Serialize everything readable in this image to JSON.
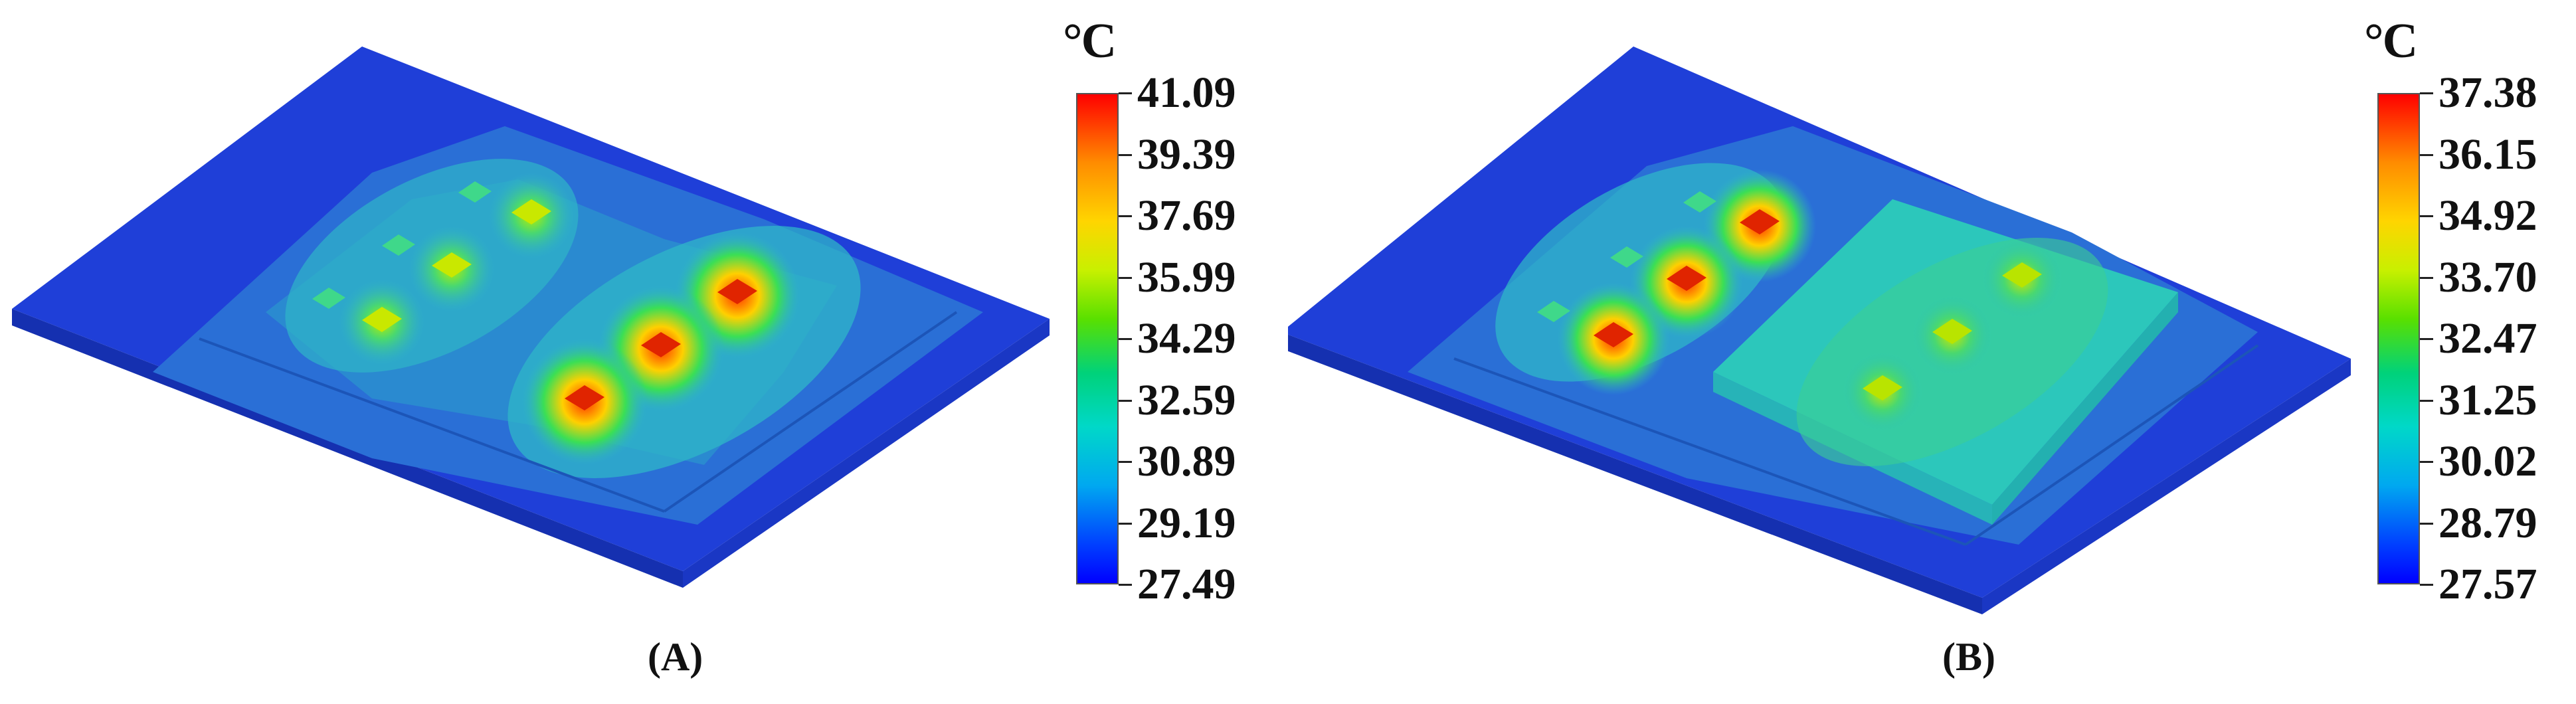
{
  "panel_a": {
    "caption": "(A)",
    "unit": "°C",
    "scale": [
      "41.09",
      "39.39",
      "37.69",
      "35.99",
      "34.29",
      "32.59",
      "30.89",
      "29.19",
      "27.49"
    ]
  },
  "panel_b": {
    "caption": "(B)",
    "unit": "°C",
    "scale": [
      "37.38",
      "36.15",
      "34.92",
      "33.70",
      "32.47",
      "31.25",
      "30.02",
      "28.79",
      "27.57"
    ]
  },
  "colors": {
    "plate_base": "#1f3fd8",
    "plate_mid": "#2a7fd6",
    "plate_warm": "#2fb5c8",
    "hot": "#ff2a00",
    "warm": "#ffd000",
    "mild": "#59e000"
  }
}
